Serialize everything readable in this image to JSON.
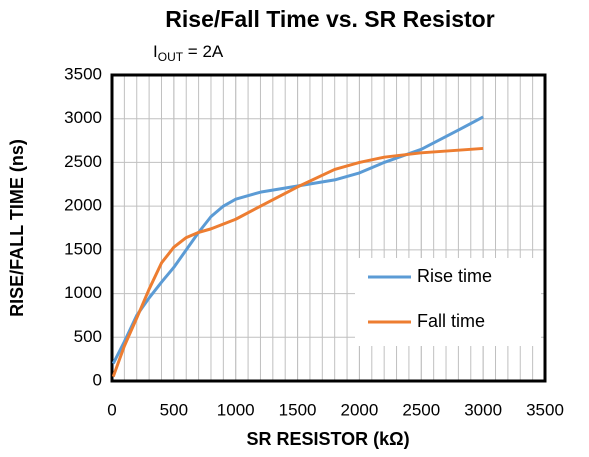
{
  "chart_data": {
    "type": "line",
    "title": "Rise/Fall Time vs. SR Resistor",
    "subtitle": [
      "I",
      "OUT",
      " = 2A"
    ],
    "x_label": "SR RESISTOR (kΩ)",
    "y_label": "RISE/FALL TIME (ns)",
    "xlim": [
      0,
      3500
    ],
    "xticks": [
      0,
      500,
      1000,
      1500,
      2000,
      2500,
      3000,
      3500
    ],
    "ylim": [
      0,
      3500
    ],
    "yticks": [
      0,
      500,
      1000,
      1500,
      2000,
      2500,
      3000,
      3500
    ],
    "x_minor_step": 100,
    "grid": true,
    "legend": "lower right",
    "series": [
      {
        "name": "Rise time",
        "color": "#5b9bd5",
        "x": [
          10,
          100,
          200,
          300,
          400,
          500,
          600,
          700,
          800,
          900,
          1000,
          1200,
          1500,
          1800,
          2000,
          2200,
          2500,
          2800,
          3000
        ],
        "values": [
          200,
          450,
          750,
          950,
          1130,
          1300,
          1500,
          1700,
          1880,
          2000,
          2080,
          2160,
          2230,
          2300,
          2380,
          2500,
          2650,
          2870,
          3020
        ]
      },
      {
        "name": "Fall time",
        "color": "#ed7d31",
        "x": [
          10,
          100,
          200,
          300,
          400,
          500,
          600,
          700,
          800,
          1000,
          1200,
          1500,
          1800,
          2000,
          2200,
          2500,
          2800,
          3000
        ],
        "values": [
          50,
          400,
          720,
          1050,
          1350,
          1530,
          1640,
          1700,
          1740,
          1850,
          2000,
          2220,
          2420,
          2500,
          2560,
          2610,
          2640,
          2660
        ]
      }
    ]
  }
}
